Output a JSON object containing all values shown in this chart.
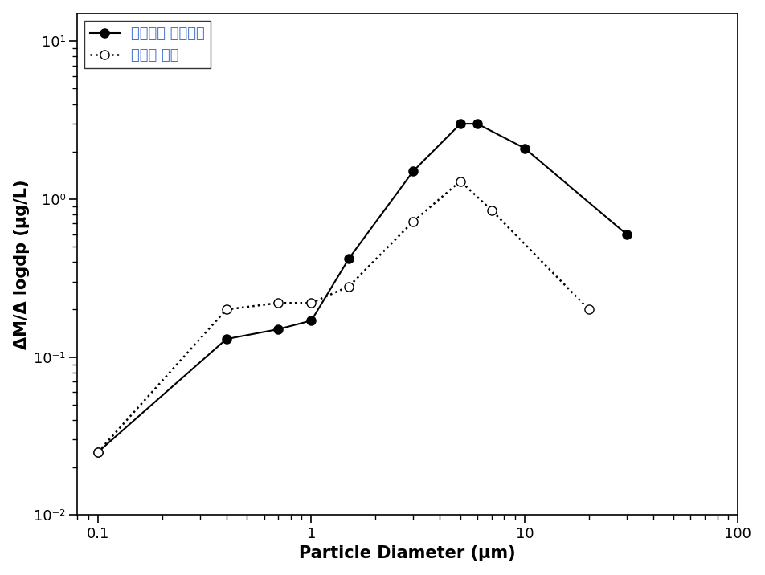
{
  "series1": {
    "label": "원료물질 투입호퍼",
    "x": [
      0.1,
      0.4,
      0.7,
      1.0,
      1.5,
      3.0,
      5.0,
      6.0,
      10.0,
      30.0
    ],
    "y": [
      0.025,
      0.13,
      0.15,
      0.17,
      0.42,
      1.5,
      3.0,
      3.0,
      2.1,
      0.6
    ]
  },
  "series2": {
    "label": "배합기 인근",
    "x": [
      0.1,
      0.4,
      0.7,
      1.0,
      1.5,
      3.0,
      5.0,
      7.0,
      20.0
    ],
    "y": [
      0.025,
      0.2,
      0.22,
      0.22,
      0.28,
      0.72,
      1.3,
      0.85,
      0.2
    ]
  },
  "xlabel": "Particle Diameter (μm)",
  "ylabel": "ΔM/Δ logdp (μg/L)",
  "xlim": [
    0.08,
    100
  ],
  "ylim": [
    0.01,
    15
  ],
  "legend_loc": "upper left",
  "legend_fontsize": 13,
  "axis_label_fontsize": 15,
  "tick_fontsize": 13,
  "legend_text_color": "#4477CC",
  "axis_color": "#000000",
  "line_color": "#000000",
  "xticks": [
    0.1,
    1,
    10,
    100
  ],
  "yticks": [
    0.01,
    0.1,
    1,
    10
  ],
  "xtick_labels": [
    "0.1",
    "1",
    "10",
    "100"
  ],
  "ytick_labels": [
    "10⁻²",
    "10⁻¹",
    "10⁰",
    "10¹"
  ]
}
